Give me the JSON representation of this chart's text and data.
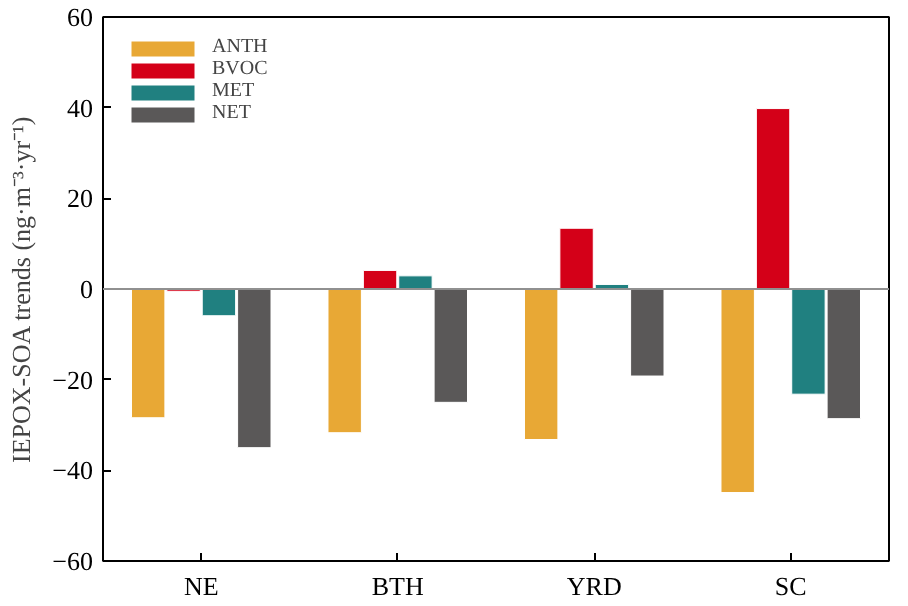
{
  "chart_data": {
    "type": "bar",
    "ylabel": "IEPOX-SOA trends (ng·m⁻³·yr⁻¹)",
    "categories": [
      "NE",
      "BTH",
      "YRD",
      "SC"
    ],
    "series": [
      {
        "name": "ANTH",
        "color": "#e8a835",
        "values": [
          -28.4,
          -31.7,
          -33.2,
          -44.9
        ]
      },
      {
        "name": "BVOC",
        "color": "#d40018",
        "values": [
          -0.5,
          4.1,
          13.4,
          39.8
        ]
      },
      {
        "name": "MET",
        "color": "#208080",
        "values": [
          -5.9,
          2.9,
          1.0,
          -23.2
        ]
      },
      {
        "name": "NET",
        "color": "#5a5858",
        "values": [
          -35.0,
          -25.0,
          -19.2,
          -28.6
        ]
      }
    ],
    "ylim": [
      -60,
      60
    ],
    "yticks": [
      -60,
      -40,
      -20,
      0,
      20,
      40,
      60
    ],
    "grid": false,
    "legend": "top left",
    "ref_lines": [
      {
        "axis": "y",
        "value": 0,
        "color": "#909090"
      }
    ]
  }
}
